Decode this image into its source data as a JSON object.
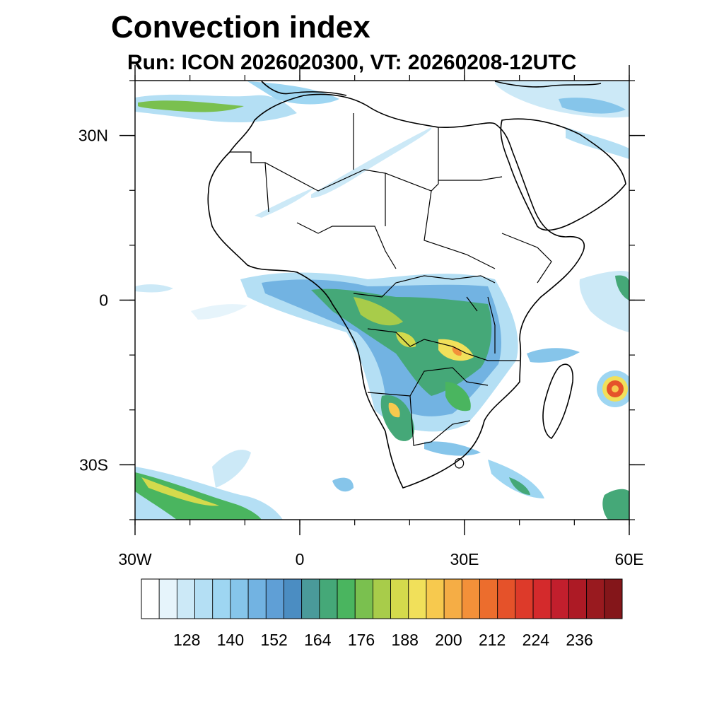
{
  "title": "Convection index",
  "subtitle": "Run: ICON 2026020300,  VT: 20260208-12UTC",
  "map": {
    "region": "Africa",
    "lon_range": [
      -30,
      60
    ],
    "lat_range": [
      -40,
      40
    ],
    "lon_ticks": [
      {
        "value": -30,
        "label": "30W"
      },
      {
        "value": 0,
        "label": "0"
      },
      {
        "value": 30,
        "label": "30E"
      },
      {
        "value": 60,
        "label": "60E"
      }
    ],
    "lat_ticks": [
      {
        "value": 30,
        "label": "30N"
      },
      {
        "value": 0,
        "label": "0"
      },
      {
        "value": -30,
        "label": "30S"
      }
    ]
  },
  "colorbar": {
    "labels": [
      "128",
      "140",
      "152",
      "164",
      "176",
      "188",
      "200",
      "212",
      "224",
      "236"
    ],
    "colors": [
      "#ffffff",
      "#e6f4fb",
      "#cce9f7",
      "#b4dff4",
      "#9ed6f2",
      "#86c5ea",
      "#72b3e2",
      "#5f9fd6",
      "#4b8dc2",
      "#4a9a9a",
      "#45a878",
      "#4ab55f",
      "#7ac04f",
      "#a8cc4a",
      "#d4da4c",
      "#f1e05a",
      "#f7c94e",
      "#f5ad45",
      "#f39039",
      "#ec6d2d",
      "#e5522a",
      "#dd3a2a",
      "#d42a2c",
      "#c21f2d",
      "#ad1a25",
      "#991a1f",
      "#84161a"
    ]
  }
}
